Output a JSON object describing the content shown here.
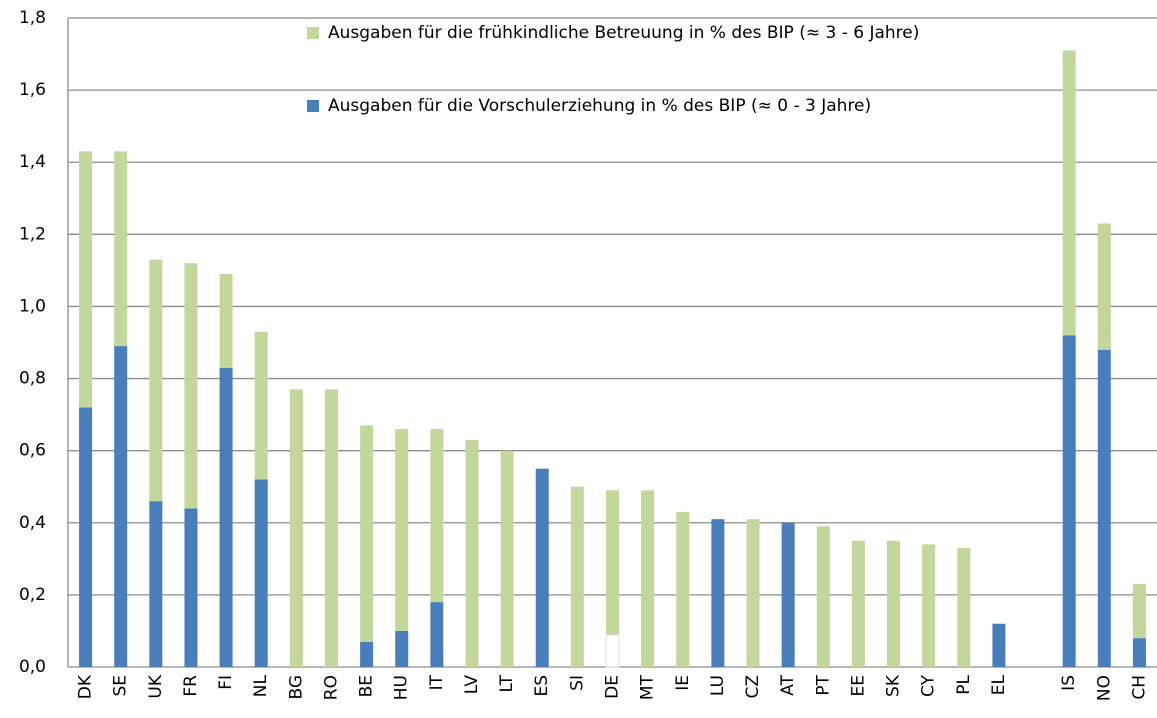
{
  "chart_data": {
    "type": "stacked_bar",
    "categories": [
      "DK",
      "SE",
      "UK",
      "FR",
      "FI",
      "NL",
      "BG",
      "RO",
      "BE",
      "HU",
      "IT",
      "LV",
      "LT",
      "ES",
      "SI",
      "DE",
      "MT",
      "IE",
      "LU",
      "CZ",
      "AT",
      "PT",
      "EE",
      "SK",
      "CY",
      "PL",
      "EL",
      null,
      "IS",
      "NO",
      "CH"
    ],
    "series": [
      {
        "name": "Ausgaben für die Vorschulerziehung in % des BIP (≈ 0 - 3 Jahre)",
        "color": "#4a7ebb",
        "colors": [
          "#4a7ebb",
          "#4a7ebb",
          "#4a7ebb",
          "#4a7ebb",
          "#4a7ebb",
          "#4a7ebb",
          "#4a7ebb",
          "#4a7ebb",
          "#4a7ebb",
          "#4a7ebb",
          "#4a7ebb",
          "#4a7ebb",
          "#4a7ebb",
          "#4a7ebb",
          "#4a7ebb",
          "#ffffff",
          "#4a7ebb",
          "#4a7ebb",
          "#4a7ebb",
          "#4a7ebb",
          "#4a7ebb",
          "#4a7ebb",
          "#4a7ebb",
          "#4a7ebb",
          "#4a7ebb",
          "#4a7ebb",
          "#4a7ebb",
          null,
          "#4a7ebb",
          "#4a7ebb",
          "#4a7ebb"
        ],
        "values": [
          0.72,
          0.89,
          0.46,
          0.44,
          0.83,
          0.52,
          0,
          0,
          0.07,
          0.1,
          0.18,
          0,
          0,
          0.55,
          0,
          0.09,
          0,
          0,
          0.41,
          0,
          0.4,
          0,
          0,
          0,
          0,
          0,
          0.12,
          null,
          0.92,
          0.88,
          0.08
        ]
      },
      {
        "name": "Ausgaben für die frühkindliche Betreuung in % des BIP (≈ 3 - 6 Jahre)",
        "color": "#c3d69b",
        "values": [
          0.71,
          0.54,
          0.67,
          0.68,
          0.26,
          0.41,
          0.77,
          0.77,
          0.6,
          0.56,
          0.48,
          0.63,
          0.6,
          0,
          0.5,
          0.4,
          0.49,
          0.43,
          0,
          0.41,
          0,
          0.39,
          0.35,
          0.35,
          0.34,
          0.33,
          0,
          null,
          0.79,
          0.35,
          0.15
        ]
      }
    ],
    "ylim": [
      0,
      1.8
    ],
    "yticks": [
      {
        "value": 0,
        "label": "0,0"
      },
      {
        "value": 0.2,
        "label": "0,2"
      },
      {
        "value": 0.4,
        "label": "0,4"
      },
      {
        "value": 0.6,
        "label": "0,6"
      },
      {
        "value": 0.8,
        "label": "0,8"
      },
      {
        "value": 1.0,
        "label": "1,0"
      },
      {
        "value": 1.2,
        "label": "1,2"
      },
      {
        "value": 1.4,
        "label": "1,4"
      },
      {
        "value": 1.6,
        "label": "1,6"
      },
      {
        "value": 1.8,
        "label": "1,8"
      }
    ],
    "grid": true
  }
}
